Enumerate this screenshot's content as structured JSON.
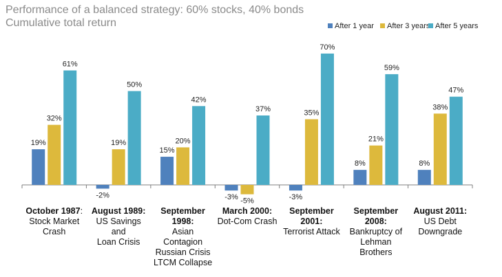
{
  "title": "Performance of a balanced strategy: 60% stocks, 40% bonds",
  "subtitle": "Cumulative total return",
  "colors": {
    "after1": "#4f81bd",
    "after3": "#ddb93c",
    "after5": "#4bacc6",
    "axis": "#7f7f7f",
    "title": "#8a8a8a"
  },
  "chart_data": {
    "type": "bar",
    "title": "Performance of a balanced strategy: 60% stocks, 40% bonds",
    "subtitle": "Cumulative total return",
    "legend_position": "top-right",
    "grid": false,
    "ylim": [
      -8,
      72
    ],
    "categories": [
      {
        "bold": "October 1987",
        "rest": ":",
        "lines": [
          "Stock Market",
          "Crash"
        ]
      },
      {
        "bold": "August 1989:",
        "rest": "",
        "lines": [
          "US Savings",
          "and",
          "Loan Crisis"
        ]
      },
      {
        "bold": "September",
        "rest": "",
        "lines": [
          "1998:",
          "Asian",
          "Contagion",
          "Russian Crisis",
          "LTCM Collapse"
        ],
        "bold_lines": 2
      },
      {
        "bold": "March 2000:",
        "rest": "",
        "lines": [
          "Dot-Com Crash"
        ]
      },
      {
        "bold": "September",
        "rest": "",
        "lines": [
          "2001:",
          "Terrorist Attack"
        ],
        "bold_lines": 2
      },
      {
        "bold": "September",
        "rest": "",
        "lines": [
          "2008:",
          "Bankruptcy of",
          "Lehman",
          "Brothers"
        ],
        "bold_lines": 2
      },
      {
        "bold": "August 2011:",
        "rest": "",
        "lines": [
          "US Debt",
          "Downgrade"
        ]
      }
    ],
    "series": [
      {
        "name": "After 1 year",
        "values": [
          19,
          -2,
          15,
          -3,
          -3,
          8,
          8
        ],
        "labels": [
          "19%",
          "-2%",
          "15%",
          "-3%",
          "-3%",
          "8%",
          "8%"
        ]
      },
      {
        "name": "After 3 years",
        "values": [
          32,
          19,
          20,
          -5,
          35,
          21,
          38
        ],
        "labels": [
          "32%",
          "19%",
          "20%",
          "-5%",
          "35%",
          "21%",
          "38%"
        ]
      },
      {
        "name": "After 5 years",
        "values": [
          61,
          50,
          42,
          37,
          70,
          59,
          47
        ],
        "labels": [
          "61%",
          "50%",
          "42%",
          "37%",
          "70%",
          "59%",
          "47%"
        ]
      }
    ]
  }
}
